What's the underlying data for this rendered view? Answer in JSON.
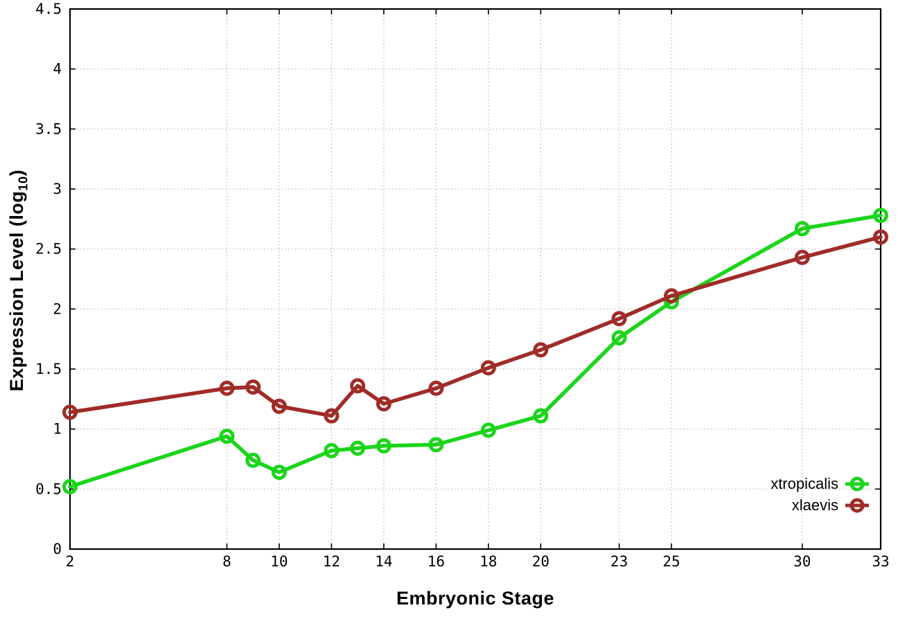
{
  "page": {
    "background": "#ffffff"
  },
  "chart_data": {
    "type": "line",
    "title": "",
    "xlabel": "Embryonic Stage",
    "ylabel": {
      "main": "Expression Level (log",
      "sub": "10",
      "close": ")"
    },
    "xlim": [
      2,
      33
    ],
    "ylim": [
      0,
      4.5
    ],
    "grid": true,
    "legend_position": "inside-bottom-right",
    "marker": "open-circle",
    "x_tick_values": [
      2,
      8,
      10,
      12,
      14,
      16,
      18,
      20,
      23,
      25,
      30,
      33
    ],
    "x_tick_labels": [
      "2",
      "8",
      "10",
      "12",
      "14",
      "16",
      "18",
      "20",
      "23",
      "25",
      "30",
      "33"
    ],
    "y_tick_values": [
      0,
      0.5,
      1,
      1.5,
      2,
      2.5,
      3,
      3.5,
      4,
      4.5
    ],
    "y_tick_labels": [
      "0",
      "0.5",
      "1",
      "1.5",
      "2",
      "2.5",
      "3",
      "3.5",
      "4",
      "4.5"
    ],
    "x": [
      2,
      8,
      9,
      10,
      12,
      13,
      14,
      16,
      18,
      20,
      23,
      25,
      30,
      33
    ],
    "series": [
      {
        "name": "xtropicalis",
        "color": "#1bd51b",
        "values": [
          0.52,
          0.94,
          0.74,
          0.64,
          0.82,
          0.84,
          0.86,
          0.87,
          0.99,
          1.11,
          1.76,
          2.06,
          2.67,
          2.78
        ]
      },
      {
        "name": "xlaevis",
        "color": "#a02c28",
        "values": [
          1.14,
          1.34,
          1.35,
          1.19,
          1.11,
          1.36,
          1.21,
          1.34,
          1.51,
          1.66,
          1.92,
          2.11,
          2.43,
          2.6
        ]
      }
    ],
    "style_colors": {
      "frame": "#000000",
      "grid": "#b3b3b3",
      "tick": "#000000"
    }
  }
}
